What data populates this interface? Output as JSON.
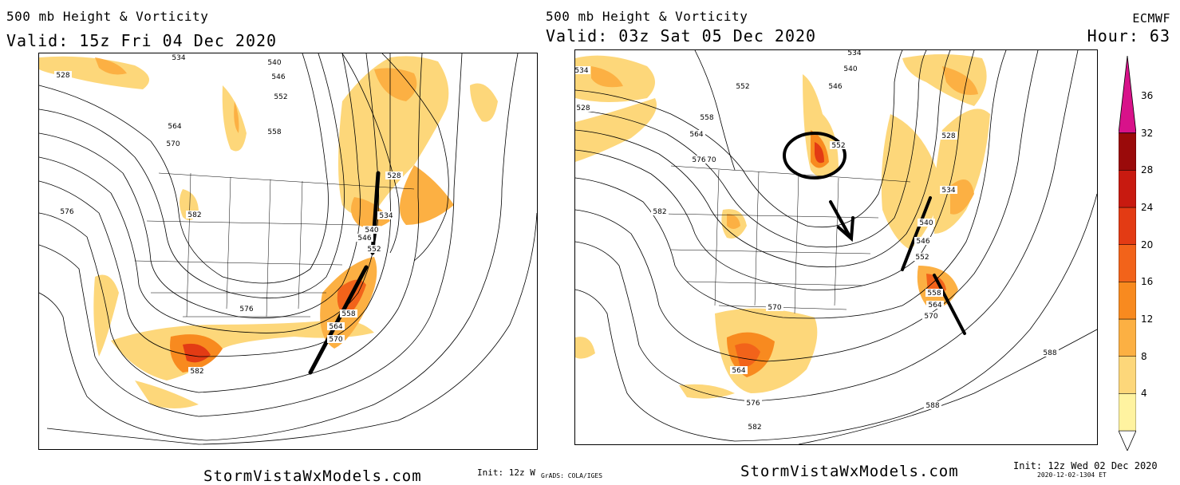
{
  "left_panel": {
    "title": "500 mb Height & Vorticity",
    "valid": "Valid: 15z Fri 04 Dec 2020",
    "contour_labels": [
      "528",
      "534",
      "540",
      "546",
      "552",
      "558",
      "564",
      "570",
      "576",
      "582",
      "528",
      "534",
      "540",
      "546",
      "552",
      "558",
      "564",
      "570",
      "576",
      "582"
    ],
    "footer_site": "StormVistaWxModels.com",
    "footer_init": "Init: 12z W",
    "footer_grads": "GrADS: COLA/IGES"
  },
  "right_panel": {
    "title": "500 mb Height & Vorticity",
    "valid": "Valid: 03z Sat 05 Dec 2020",
    "model": "ECMWF",
    "hour": "Hour: 63",
    "contour_labels": [
      "534",
      "540",
      "546",
      "552",
      "558",
      "564",
      "570",
      "576",
      "582",
      "588",
      "528",
      "534",
      "540",
      "546",
      "552",
      "558",
      "564",
      "570",
      "570",
      "576",
      "582",
      "588",
      "564",
      "552",
      "534",
      "528"
    ],
    "footer_site": "StormVistaWxModels.com",
    "footer_init": "Init: 12z Wed 02 Dec 2020",
    "footer_stamp": "2020-12-02-1304 ET"
  },
  "colorbar": {
    "levels": [
      "4",
      "8",
      "12",
      "16",
      "20",
      "24",
      "28",
      "32",
      "36"
    ],
    "colors": [
      "#fff3a0",
      "#fdd77a",
      "#fcb043",
      "#f88a1f",
      "#f2631a",
      "#e33b14",
      "#c81a10",
      "#9a0a0a",
      "#d8128a"
    ]
  }
}
